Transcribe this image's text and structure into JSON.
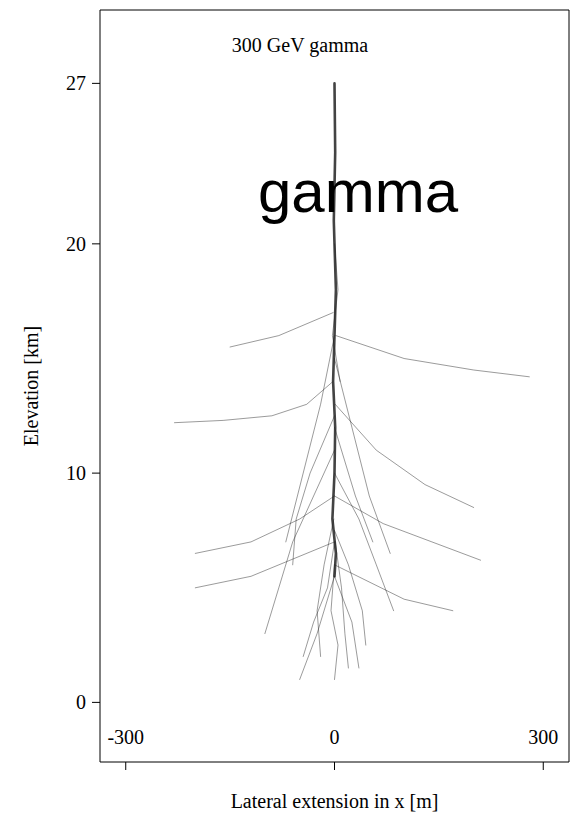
{
  "chart_data": {
    "type": "line",
    "title": "300 GeV gamma",
    "annotation": "gamma",
    "x_label": "Lateral extension in x [m]",
    "y_label": "Elevation [km]",
    "xlim": [
      -337,
      337
    ],
    "xticks": [
      -300,
      0,
      300
    ],
    "ylim": [
      -2.6,
      30.2
    ],
    "yticks": [
      0,
      10,
      20,
      27
    ],
    "grid": false,
    "color": "#222222",
    "series": [
      {
        "x": [
          0,
          1,
          -1,
          2,
          0,
          -2,
          1,
          0,
          -3,
          2,
          0
        ],
        "values": [
          27,
          24,
          21,
          18,
          16,
          14,
          12,
          10,
          8,
          6.5,
          5.5
        ]
      },
      {
        "x": [
          0,
          -20,
          -45,
          -70
        ],
        "values": [
          16,
          13,
          10,
          7
        ]
      },
      {
        "x": [
          0,
          25,
          50,
          80
        ],
        "values": [
          15,
          12,
          9,
          6.5
        ]
      },
      {
        "x": [
          -2,
          -40,
          -90,
          -160,
          -230
        ],
        "values": [
          14,
          13,
          12.5,
          12.3,
          12.2
        ]
      },
      {
        "x": [
          1,
          60,
          130,
          200
        ],
        "values": [
          13,
          11,
          9.5,
          8.5
        ]
      },
      {
        "x": [
          0,
          -30,
          -60,
          -80,
          -100
        ],
        "values": [
          11,
          9,
          7,
          5,
          3
        ]
      },
      {
        "x": [
          0,
          35,
          60,
          85
        ],
        "values": [
          10,
          8,
          6,
          4
        ]
      },
      {
        "x": [
          -1,
          -15,
          -25,
          -20
        ],
        "values": [
          8,
          6,
          4,
          2
        ]
      },
      {
        "x": [
          1,
          10,
          15,
          20
        ],
        "values": [
          7,
          5,
          3,
          1.5
        ]
      },
      {
        "x": [
          0,
          -50,
          -120,
          -200
        ],
        "values": [
          9,
          8,
          7,
          6.5
        ]
      },
      {
        "x": [
          0,
          70,
          140,
          210
        ],
        "values": [
          9,
          7.8,
          7,
          6.2
        ]
      },
      {
        "x": [
          0,
          -5,
          5,
          0
        ],
        "values": [
          6,
          4,
          2.5,
          1
        ]
      },
      {
        "x": [
          2,
          100,
          200,
          280
        ],
        "values": [
          16,
          15,
          14.5,
          14.2
        ]
      },
      {
        "x": [
          -2,
          -80,
          -150
        ],
        "values": [
          17,
          16,
          15.5
        ]
      },
      {
        "x": [
          0,
          30,
          55
        ],
        "values": [
          12,
          9,
          7
        ]
      },
      {
        "x": [
          0,
          -35,
          -55,
          -60
        ],
        "values": [
          12.5,
          10,
          8,
          6
        ]
      },
      {
        "x": [
          0,
          -10,
          -30,
          -45
        ],
        "values": [
          7,
          5,
          3.5,
          2
        ]
      },
      {
        "x": [
          0,
          20,
          40,
          45
        ],
        "values": [
          7.5,
          6,
          4,
          2.5
        ]
      },
      {
        "x": [
          0,
          -120,
          -200
        ],
        "values": [
          7,
          5.5,
          5
        ]
      },
      {
        "x": [
          0,
          100,
          170
        ],
        "values": [
          6,
          4.5,
          4
        ]
      },
      {
        "x": [
          0,
          5,
          -3,
          8
        ],
        "values": [
          20,
          18,
          16,
          14
        ]
      },
      {
        "x": [
          0,
          -25,
          -50
        ],
        "values": [
          5.5,
          3,
          1
        ]
      },
      {
        "x": [
          0,
          25,
          35
        ],
        "values": [
          5.5,
          3.5,
          1.5
        ]
      }
    ]
  }
}
